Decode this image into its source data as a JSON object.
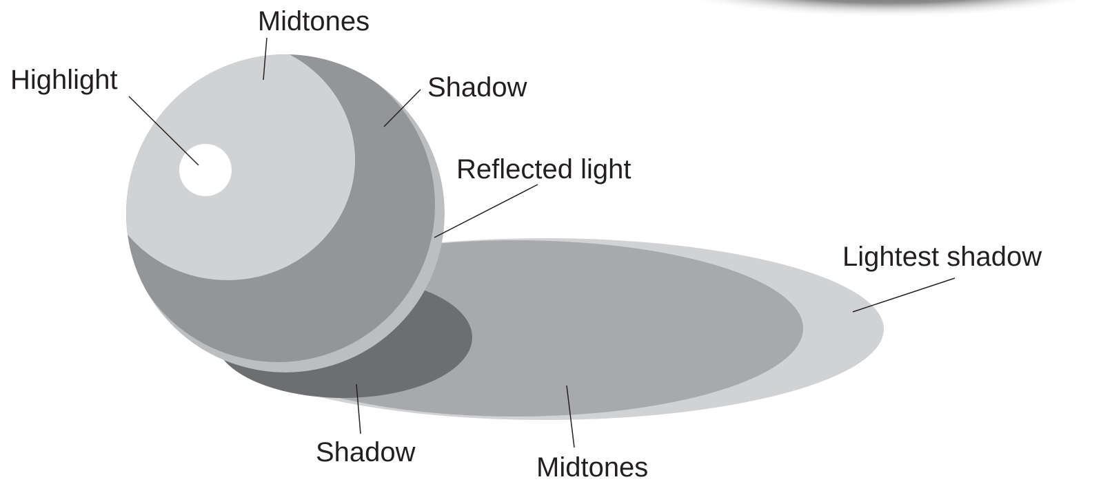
{
  "labels": [
    "Midtones",
    "Highlight",
    "Shadow",
    "Reflected light",
    "Lightest shadow",
    "Shadow",
    "Midtones"
  ]
}
